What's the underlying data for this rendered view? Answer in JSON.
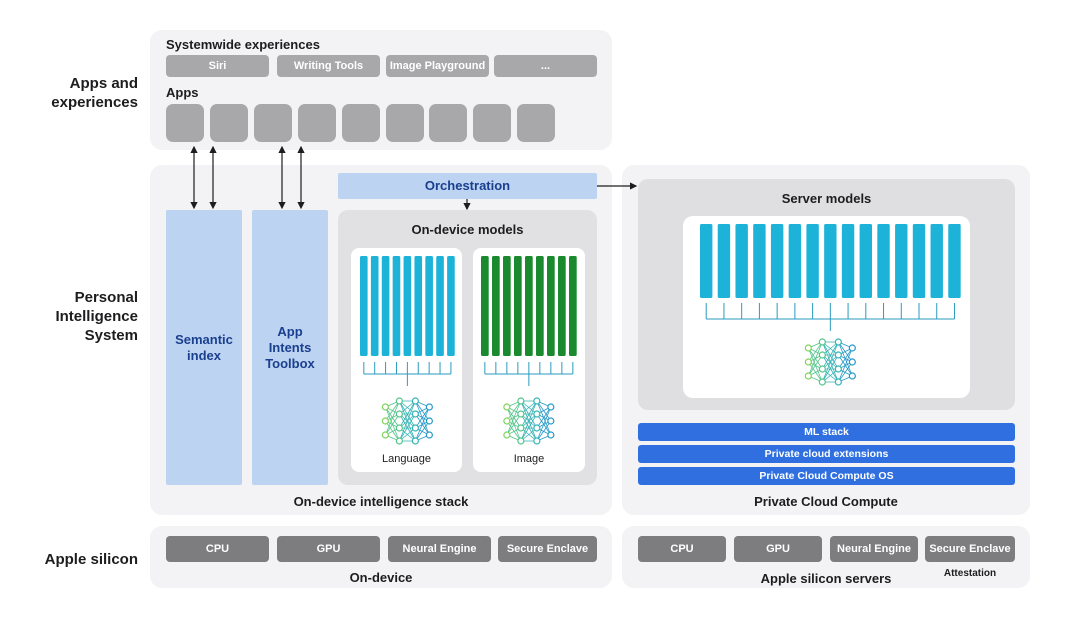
{
  "rows": {
    "apps": "Apps and experiences",
    "pis": "Personal Intelligence System",
    "silicon": "Apple silicon"
  },
  "systemwide": {
    "title": "Systemwide experiences",
    "items": [
      "Siri",
      "Writing Tools",
      "Image Playground",
      "..."
    ]
  },
  "apps": {
    "title": "Apps"
  },
  "orchestration": "Orchestration",
  "semantic_index": "Semantic index",
  "app_intents": "App Intents Toolbox",
  "on_device_models": {
    "title": "On-device models",
    "models": [
      "Language",
      "Image"
    ]
  },
  "on_device_stack": "On-device intelligence stack",
  "server_models": "Server models",
  "pcc": {
    "layers": [
      "ML stack",
      "Private cloud extensions",
      "Private Cloud Compute OS"
    ],
    "title": "Private Cloud Compute"
  },
  "silicon": {
    "on_device": {
      "chips": [
        "CPU",
        "GPU",
        "Neural Engine",
        "Secure Enclave"
      ],
      "label": "On-device"
    },
    "servers": {
      "chips": [
        "CPU",
        "GPU",
        "Neural Engine",
        "Secure Enclave"
      ],
      "label": "Apple silicon servers",
      "attestation": "Attestation"
    }
  }
}
